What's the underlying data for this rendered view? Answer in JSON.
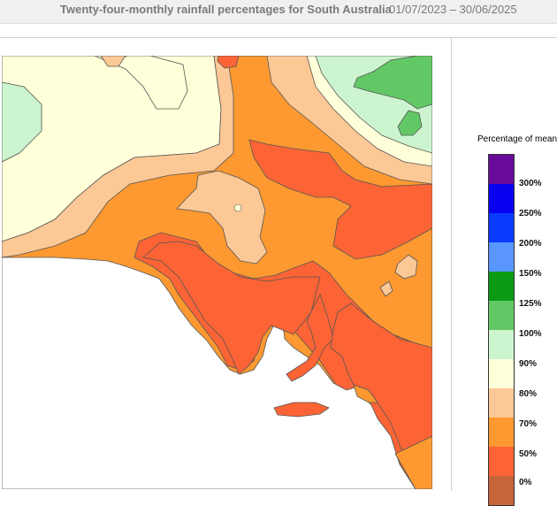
{
  "header": {
    "title": "Twenty-four-monthly rainfall percentages for South Australia",
    "period": "01/07/2023 – 30/06/2025"
  },
  "legend": {
    "title": "Percentage of mean",
    "bins": [
      {
        "color": "#6a0a9a"
      },
      {
        "color": "#0a00f0"
      },
      {
        "color": "#0a3cff"
      },
      {
        "color": "#5a96ff"
      },
      {
        "color": "#0b9a14"
      },
      {
        "color": "#62c866"
      },
      {
        "color": "#ccf5cf"
      },
      {
        "color": "#ffffd9"
      },
      {
        "color": "#fcc896"
      },
      {
        "color": "#fd9930"
      },
      {
        "color": "#fc6435"
      },
      {
        "color": "#c6643a"
      }
    ],
    "ticks": [
      "300%",
      "250%",
      "200%",
      "150%",
      "125%",
      "100%",
      "90%",
      "80%",
      "70%",
      "50%",
      "0%"
    ]
  },
  "colors": {
    "below_50": "#c6643a",
    "p50_70": "#fc6435",
    "p70_80": "#fd9930",
    "p80_90": "#fcc896",
    "p90_100": "#ffffd9",
    "p100_125": "#ccf5cf",
    "p125_150": "#62c866",
    "ocean": "#ffffff"
  }
}
